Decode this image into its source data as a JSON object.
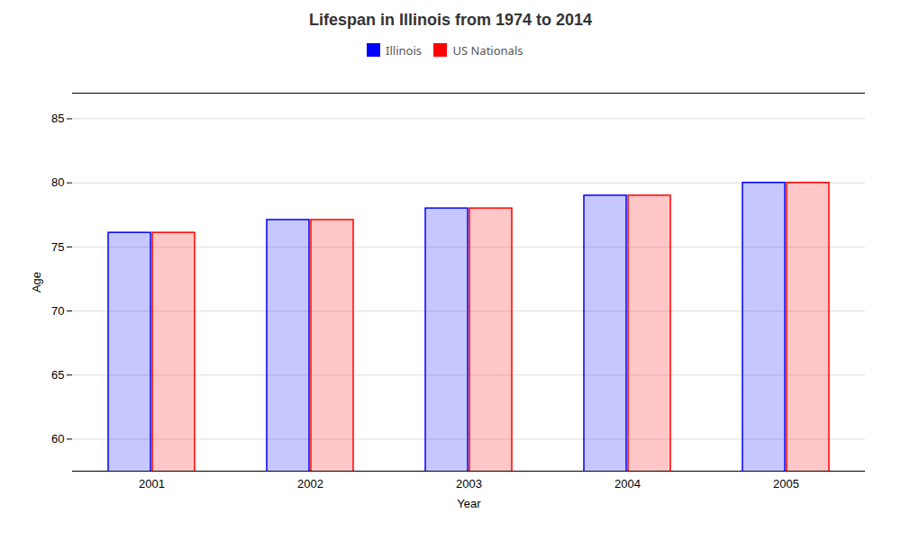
{
  "chart_data": {
    "type": "bar",
    "title": "Lifespan in Illinois from 1974 to 2014",
    "x_label": "Year",
    "y_label": "Age",
    "categories": [
      "2001",
      "2002",
      "2003",
      "2004",
      "2005"
    ],
    "series": [
      {
        "name": "Illinois",
        "color": "#0000ff",
        "values": [
          76.1,
          77.1,
          78.0,
          79.0,
          80.0
        ]
      },
      {
        "name": "US Nationals",
        "color": "#ff0000",
        "values": [
          76.1,
          77.1,
          78.0,
          79.0,
          80.0
        ]
      }
    ],
    "ylim": [
      57.5,
      87
    ],
    "yticks": [
      60,
      65,
      70,
      75,
      80,
      85
    ],
    "grid": true,
    "legend": "top"
  }
}
